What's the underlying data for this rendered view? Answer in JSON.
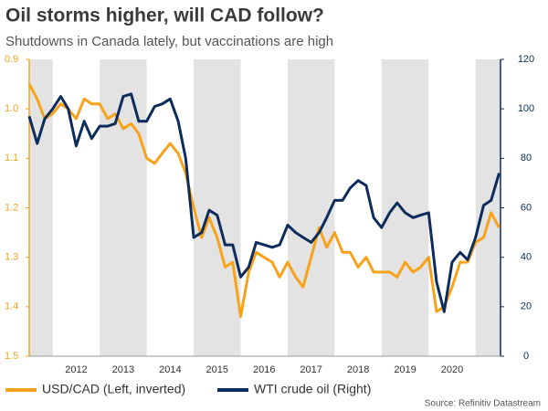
{
  "chart_data": {
    "type": "line",
    "title": "Oil storms higher, will CAD follow?",
    "subtitle": "Shutdowns in Canada lately, but vaccinations are high",
    "source": "Source: Refinitiv Datastream",
    "x": [
      2011.5,
      2011.67,
      2011.83,
      2012.0,
      2012.17,
      2012.33,
      2012.5,
      2012.67,
      2012.83,
      2013.0,
      2013.17,
      2013.33,
      2013.5,
      2013.67,
      2013.83,
      2014.0,
      2014.17,
      2014.33,
      2014.5,
      2014.67,
      2014.83,
      2015.0,
      2015.17,
      2015.33,
      2015.5,
      2015.67,
      2015.83,
      2016.0,
      2016.17,
      2016.33,
      2016.5,
      2016.67,
      2016.83,
      2017.0,
      2017.17,
      2017.33,
      2017.5,
      2017.67,
      2017.83,
      2018.0,
      2018.17,
      2018.33,
      2018.5,
      2018.67,
      2018.83,
      2019.0,
      2019.17,
      2019.33,
      2019.5,
      2019.67,
      2019.83,
      2020.0,
      2020.17,
      2020.33,
      2020.5,
      2020.67,
      2020.83,
      2021.0,
      2021.17,
      2021.33,
      2021.5
    ],
    "xlim": [
      2011.5,
      2021.53
    ],
    "xticks": [
      {
        "value": 2012.5,
        "label": "2012"
      },
      {
        "value": 2013.5,
        "label": "2013"
      },
      {
        "value": 2014.5,
        "label": "2014"
      },
      {
        "value": 2015.5,
        "label": "2015"
      },
      {
        "value": 2016.5,
        "label": "2016"
      },
      {
        "value": 2017.5,
        "label": "2017"
      },
      {
        "value": 2018.5,
        "label": "2018"
      },
      {
        "value": 2019.5,
        "label": "2019"
      },
      {
        "value": 2020.5,
        "label": "2020"
      }
    ],
    "ylim": [
      0.9,
      1.5
    ],
    "y_inverted": true,
    "yticks": [
      0.9,
      {
        "value": 1,
        "label": "1.0"
      },
      1.1,
      1.2,
      1.3,
      1.4,
      1.5
    ],
    "y2lim": [
      0,
      120
    ],
    "y2ticks": [
      0,
      20,
      40,
      60,
      80,
      100,
      120
    ],
    "series": [
      {
        "name": "USD/CAD (Left, inverted)",
        "color": "#f7a21b",
        "axis": "y",
        "values": [
          0.95,
          0.98,
          1.02,
          1.01,
          0.99,
          1.0,
          1.02,
          0.98,
          0.99,
          0.99,
          1.02,
          1.01,
          1.04,
          1.03,
          1.05,
          1.1,
          1.11,
          1.09,
          1.07,
          1.09,
          1.13,
          1.2,
          1.26,
          1.22,
          1.26,
          1.32,
          1.31,
          1.42,
          1.33,
          1.29,
          1.3,
          1.31,
          1.34,
          1.31,
          1.34,
          1.36,
          1.3,
          1.24,
          1.28,
          1.25,
          1.29,
          1.29,
          1.32,
          1.3,
          1.33,
          1.33,
          1.33,
          1.34,
          1.31,
          1.33,
          1.32,
          1.3,
          1.41,
          1.4,
          1.36,
          1.31,
          1.31,
          1.27,
          1.26,
          1.21,
          1.24
        ]
      },
      {
        "name": "WTI crude oil (Right)",
        "color": "#0d2c5c",
        "axis": "y2",
        "values": [
          97,
          86,
          96,
          100,
          105,
          100,
          85,
          95,
          88,
          93,
          93,
          94,
          105,
          106,
          95,
          95,
          101,
          102,
          104,
          95,
          80,
          48,
          50,
          59,
          57,
          45,
          45,
          32,
          36,
          46,
          45,
          44,
          45,
          53,
          50,
          48,
          46,
          50,
          56,
          63,
          63,
          68,
          71,
          69,
          56,
          52,
          58,
          62,
          58,
          56,
          57,
          58,
          30,
          18,
          38,
          42,
          39,
          48,
          61,
          63,
          74
        ]
      }
    ]
  }
}
